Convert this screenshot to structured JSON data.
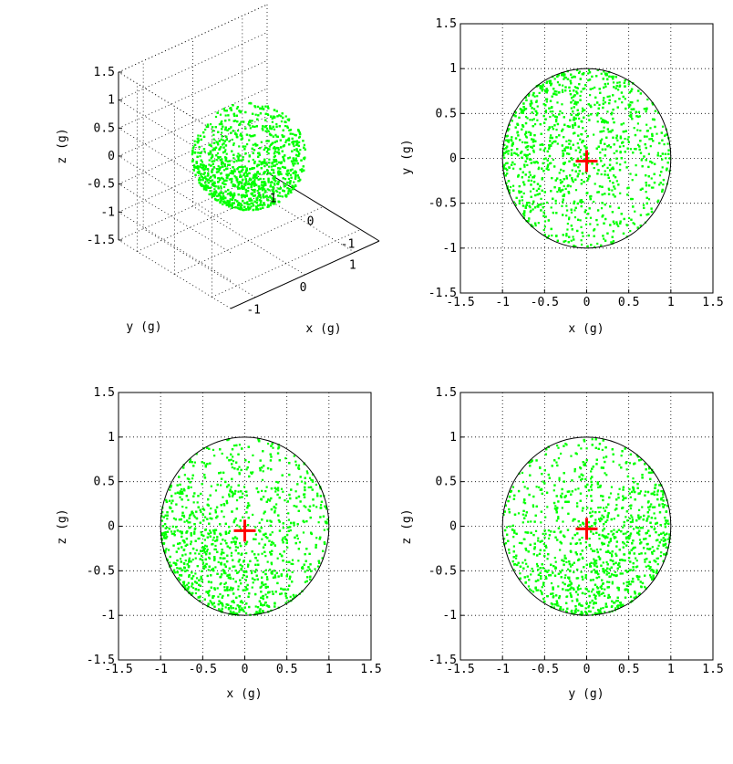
{
  "caption": "",
  "chart_data": [
    {
      "type": "scatter",
      "projection": "3d",
      "panel": "top-left",
      "xlabel": "x (g)",
      "ylabel": "y (g)",
      "zlabel": "z (g)",
      "xticks": [
        "-1",
        "0",
        "1"
      ],
      "yticks": [
        "-1",
        "0",
        "1"
      ],
      "zticks": [
        "-1.5",
        "-1",
        "-0.5",
        "0",
        "0.5",
        "1",
        "1.5"
      ],
      "xlim": [
        -1.5,
        1.5
      ],
      "ylim": [
        -1.5,
        1.5
      ],
      "zlim": [
        -1.5,
        1.5
      ],
      "grid": true,
      "series": [
        {
          "color": "#00ff00",
          "marker": "point",
          "distribution": "points on unit sphere, denser toward -x and -z"
        }
      ]
    },
    {
      "type": "scatter",
      "panel": "top-right",
      "xlabel": "x (g)",
      "ylabel": "y (g)",
      "ticks": [
        "-1.5",
        "-1",
        "-0.5",
        "0",
        "0.5",
        "1",
        "1.5"
      ],
      "xlim": [
        -1.5,
        1.5
      ],
      "ylim": [
        -1.5,
        1.5
      ],
      "grid": true,
      "circle_radius": 1,
      "center_marker": {
        "x": 0,
        "y": -0.03,
        "color": "#ff0000"
      },
      "series": [
        {
          "color": "#00ff00",
          "marker": "point",
          "distribution": "points inside unit circle, denser toward -x and +y"
        }
      ]
    },
    {
      "type": "scatter",
      "panel": "bottom-left",
      "xlabel": "x (g)",
      "ylabel": "z (g)",
      "ticks": [
        "-1.5",
        "-1",
        "-0.5",
        "0",
        "0.5",
        "1",
        "1.5"
      ],
      "xlim": [
        -1.5,
        1.5
      ],
      "ylim": [
        -1.5,
        1.5
      ],
      "grid": true,
      "circle_radius": 1,
      "center_marker": {
        "x": 0,
        "y": -0.05,
        "color": "#ff0000"
      },
      "series": [
        {
          "color": "#00ff00",
          "marker": "point",
          "distribution": "points inside unit circle, denser toward -x and -z"
        }
      ]
    },
    {
      "type": "scatter",
      "panel": "bottom-right",
      "xlabel": "y (g)",
      "ylabel": "z (g)",
      "ticks": [
        "-1.5",
        "-1",
        "-0.5",
        "0",
        "0.5",
        "1",
        "1.5"
      ],
      "xlim": [
        -1.5,
        1.5
      ],
      "ylim": [
        -1.5,
        1.5
      ],
      "grid": true,
      "circle_radius": 1,
      "center_marker": {
        "x": 0,
        "y": -0.03,
        "color": "#ff0000"
      },
      "series": [
        {
          "color": "#00ff00",
          "marker": "point",
          "distribution": "points inside unit circle, denser toward +y and -z"
        }
      ]
    }
  ]
}
